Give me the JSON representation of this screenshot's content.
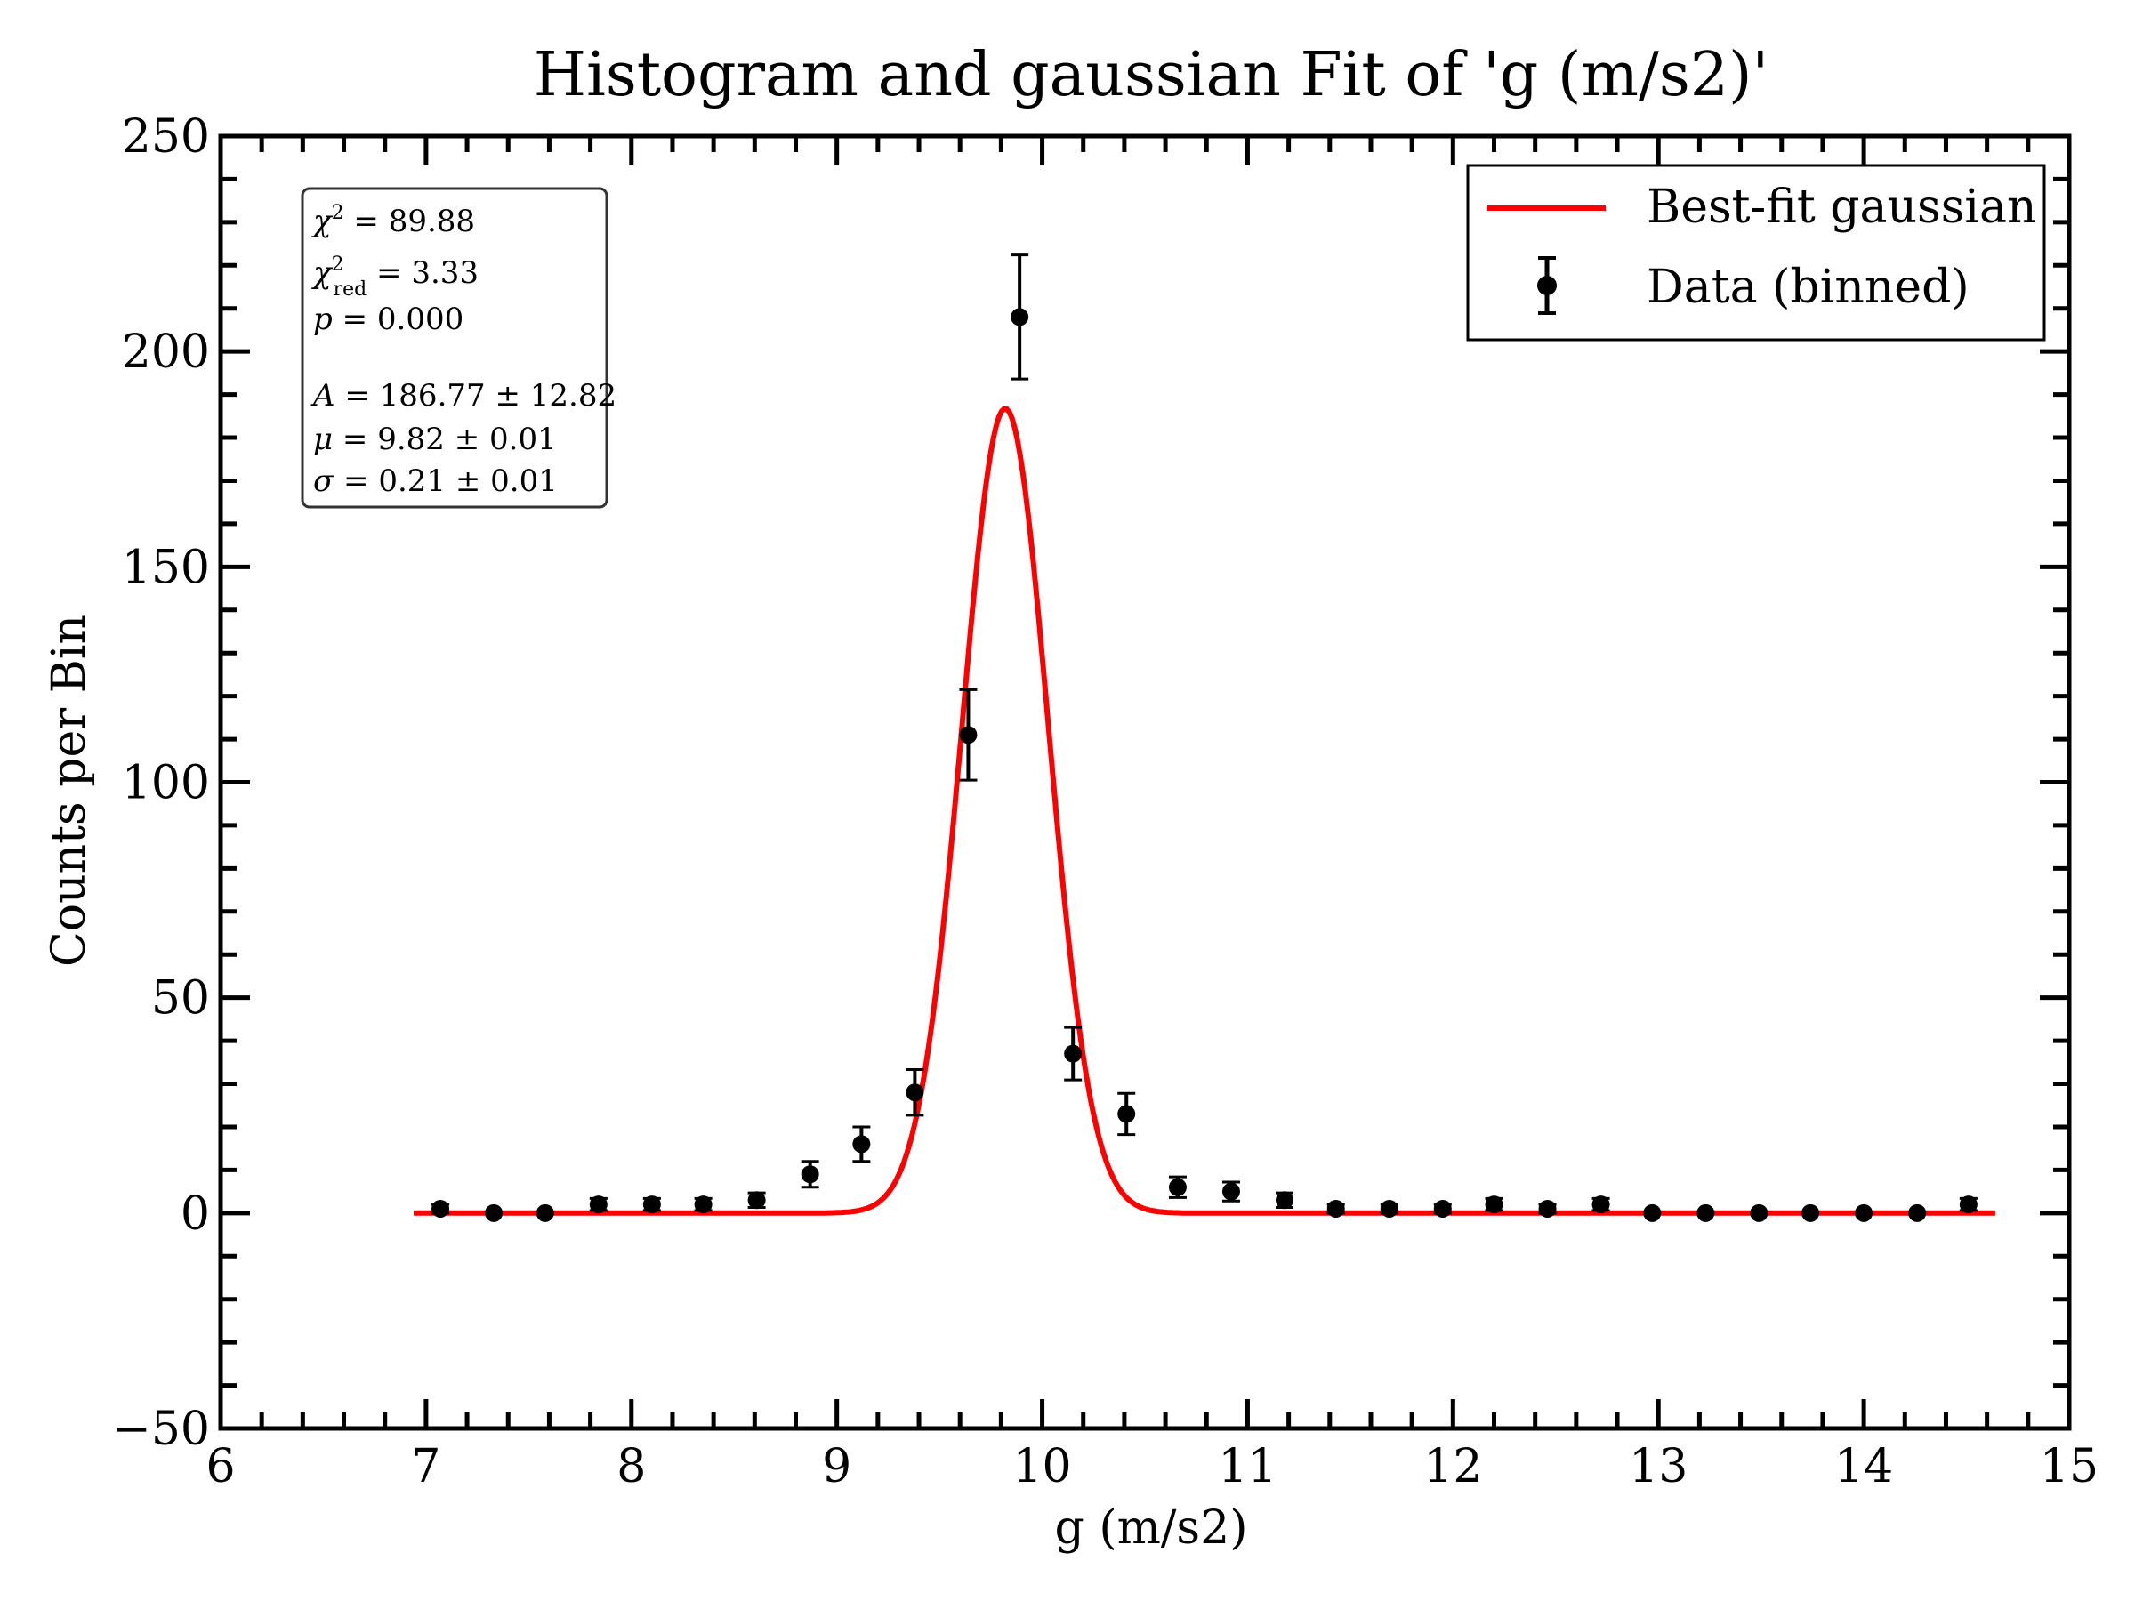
{
  "chart_data": {
    "type": "scatter",
    "title": "Histogram and gaussian Fit of 'g (m/s2)'",
    "xlabel": "g (m/s2)",
    "ylabel": "Counts per Bin",
    "xlim": [
      6,
      15
    ],
    "ylim": [
      -50,
      250
    ],
    "x_ticks": [
      6,
      7,
      8,
      9,
      10,
      11,
      12,
      13,
      14,
      15
    ],
    "y_ticks": [
      -50,
      0,
      50,
      100,
      150,
      200,
      250
    ],
    "x_tick_labels": [
      "6",
      "7",
      "8",
      "9",
      "10",
      "11",
      "12",
      "13",
      "14",
      "15"
    ],
    "y_tick_labels": [
      "−50",
      "0",
      "50",
      "100",
      "150",
      "200",
      "250"
    ],
    "grid": false,
    "legend": {
      "placement": "top-right",
      "entries": [
        "Best-fit gaussian",
        "Data (binned)"
      ]
    },
    "series": [
      {
        "name": "Data (binned)",
        "kind": "errorbar",
        "color": "#000000",
        "x": [
          7.07,
          7.33,
          7.58,
          7.84,
          8.1,
          8.35,
          8.61,
          8.87,
          9.12,
          9.38,
          9.64,
          9.89,
          10.15,
          10.41,
          10.66,
          10.92,
          11.18,
          11.43,
          11.69,
          11.95,
          12.2,
          12.46,
          12.72,
          12.97,
          13.23,
          13.49,
          13.74,
          14.0,
          14.26,
          14.51
        ],
        "y": [
          1,
          0,
          0,
          2,
          2,
          2,
          3,
          9,
          16,
          28,
          111,
          208,
          37,
          23,
          6,
          5,
          3,
          1,
          1,
          1,
          2,
          1,
          2,
          0,
          0,
          0,
          0,
          0,
          0,
          2
        ],
        "yerr": [
          1,
          0,
          0,
          1.4,
          1.4,
          1.4,
          1.7,
          3,
          4,
          5.3,
          10.5,
          14.4,
          6.1,
          4.8,
          2.4,
          2.2,
          1.7,
          1,
          1,
          1,
          1.4,
          1,
          1.4,
          0,
          0,
          0,
          0,
          0,
          0,
          1.4
        ]
      },
      {
        "name": "Best-fit gaussian",
        "kind": "line",
        "color": "#ff0000",
        "model": "gaussian",
        "x_range": [
          6.94,
          14.64
        ],
        "A": 186.77,
        "mu": 9.82,
        "sigma": 0.21
      }
    ],
    "annotation": {
      "chi2": "89.88",
      "chi2_red": "3.33",
      "p": "0.000",
      "A": "186.77",
      "A_err": "12.82",
      "mu": "9.82",
      "mu_err": "0.01",
      "sigma": "0.21",
      "sigma_err": "0.01"
    }
  }
}
